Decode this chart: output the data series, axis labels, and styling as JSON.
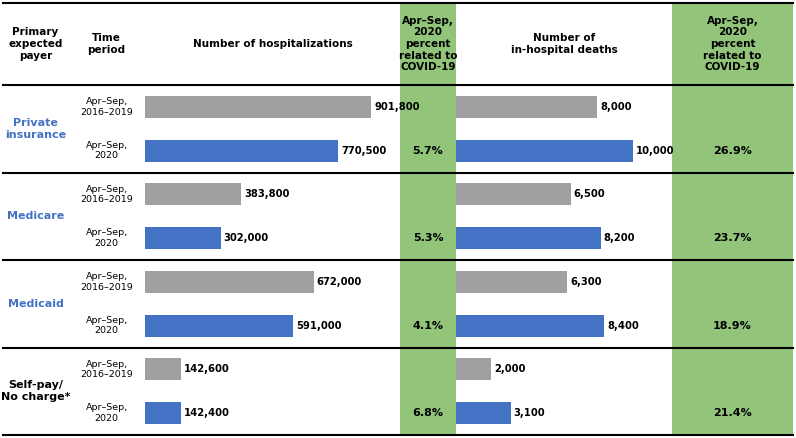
{
  "payers": [
    "Private\ninsurance",
    "Medicare",
    "Medicaid",
    "Self-pay/\nNo charge*"
  ],
  "payer_colors": [
    "#4472c4",
    "#4472c4",
    "#4472c4",
    "#000000"
  ],
  "time_labels": [
    [
      "Apr–Sep,\n2016–2019",
      "Apr–Sep,\n2020"
    ],
    [
      "Apr–Sep,\n2016–2019",
      "Apr–Sep,\n2020"
    ],
    [
      "Apr–Sep,\n2016–2019",
      "Apr–Sep,\n2020"
    ],
    [
      "Apr–Sep,\n2016–2019",
      "Apr–Sep,\n2020"
    ]
  ],
  "hosp_values": [
    [
      901800,
      770500
    ],
    [
      383800,
      302000
    ],
    [
      672000,
      591000
    ],
    [
      142600,
      142400
    ]
  ],
  "hosp_labels": [
    [
      "901,800",
      "770,500"
    ],
    [
      "383,800",
      "302,000"
    ],
    [
      "672,000",
      "591,000"
    ],
    [
      "142,600",
      "142,400"
    ]
  ],
  "death_values": [
    [
      8000,
      10000
    ],
    [
      6500,
      8200
    ],
    [
      6300,
      8400
    ],
    [
      2000,
      3100
    ]
  ],
  "death_labels": [
    [
      "8,000",
      "10,000"
    ],
    [
      "6,500",
      "8,200"
    ],
    [
      "6,300",
      "8,400"
    ],
    [
      "2,000",
      "3,100"
    ]
  ],
  "covid_hosp_pct": [
    "5.7%",
    "5.3%",
    "4.1%",
    "6.8%"
  ],
  "covid_death_pct": [
    "26.9%",
    "23.7%",
    "18.9%",
    "21.4%"
  ],
  "bar_color_2019": "#a0a0a0",
  "bar_color_2020": "#4472c4",
  "green_bg": "#92c47a",
  "white_bg": "#ffffff",
  "max_hosp": 1000000,
  "max_death": 12000,
  "col_header_1": "Primary\nexpected\npayer",
  "col_header_2": "Time\nperiod",
  "col_header_3": "Number of hospitalizations",
  "col_header_4": "Apr–Sep,\n2020\npercent\nrelated to\nCOVID-19",
  "col_header_5": "Number of\nin-hospital deaths",
  "col_header_6": "Apr–Sep,\n2020\npercent\nrelated to\nCOVID-19",
  "border_color": "#000000",
  "text_color": "#000000"
}
